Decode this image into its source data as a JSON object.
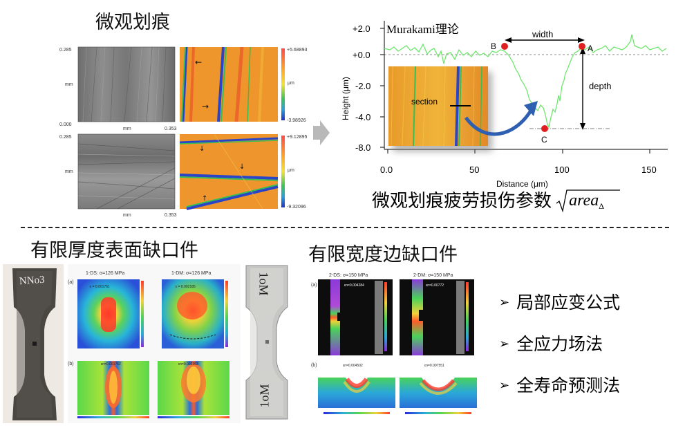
{
  "micro_scratch": {
    "title": "微观划痕",
    "img1": {
      "ytick_top": "0.285",
      "ytick_bottom": "0.000",
      "yunit": "mm",
      "xunit": "mm",
      "xmax": "0.353"
    },
    "img2": {
      "ytick_top": "0.285",
      "yunit": "mm",
      "xunit": "mm",
      "xmax": "0.353"
    },
    "scale1": {
      "max": "+5.68893",
      "unit": "μm",
      "min": "-3.98926"
    },
    "scale2": {
      "max": "+9.12895",
      "unit": "μm",
      "min": "-9.32096"
    }
  },
  "profile_chart": {
    "theory_label": "Murakami理论",
    "point_b": "B",
    "point_a": "A",
    "point_c": "C",
    "width_label": "width",
    "depth_label": "depth",
    "section_label": "section",
    "ylabel": "Height (μm)",
    "xlabel": "Distance (μm)",
    "yticks": [
      "+2.0",
      "+0.0",
      "-2.0",
      "-4.0",
      "-8.0"
    ],
    "xticks": [
      "0.0",
      "50",
      "100",
      "150"
    ]
  },
  "fatigue_param": {
    "text": "微观划痕疲劳损伤参数",
    "formula_var": "area",
    "formula_sub": "Δ"
  },
  "surface_notch": {
    "title": "有限厚度表面缺口件",
    "specimen_mark": "NNo3",
    "right_specimen_top": "1oM",
    "right_specimen_bottom": "1oM",
    "panel_a": "(a)",
    "panel_b": "(b)",
    "ds_title": "1-DS: σ=126 MPa",
    "dm_title": "1-DM: σ=126 MPa",
    "ds_strain_a": "ε = 0.001761",
    "dm_strain_a": "ε = 0.002185",
    "ds_strain_b": "εn=0.001762",
    "dm_strain_b": "εn=0.002363"
  },
  "edge_notch": {
    "title": "有限宽度边缺口件",
    "panel_a": "(a)",
    "panel_b": "(b)",
    "ds_title": "2-DS: σ=150 MPa",
    "dm_title": "2-DM: σ=150 MPa",
    "ds_strain_a": "εn=0.004284",
    "dm_strain_a": "εn=0.00772",
    "ds_strain_b": "εn=0.004502",
    "dm_strain_b": "εn=0.007551"
  },
  "methods": [
    "局部应变公式",
    "全应力场法",
    "全寿命预测法"
  ],
  "colors": {
    "profile_line": "#6ee66e",
    "marker": "#e02020",
    "arrow_blue": "#2f5fb0",
    "grey_arrow": "#b9b9b9"
  }
}
